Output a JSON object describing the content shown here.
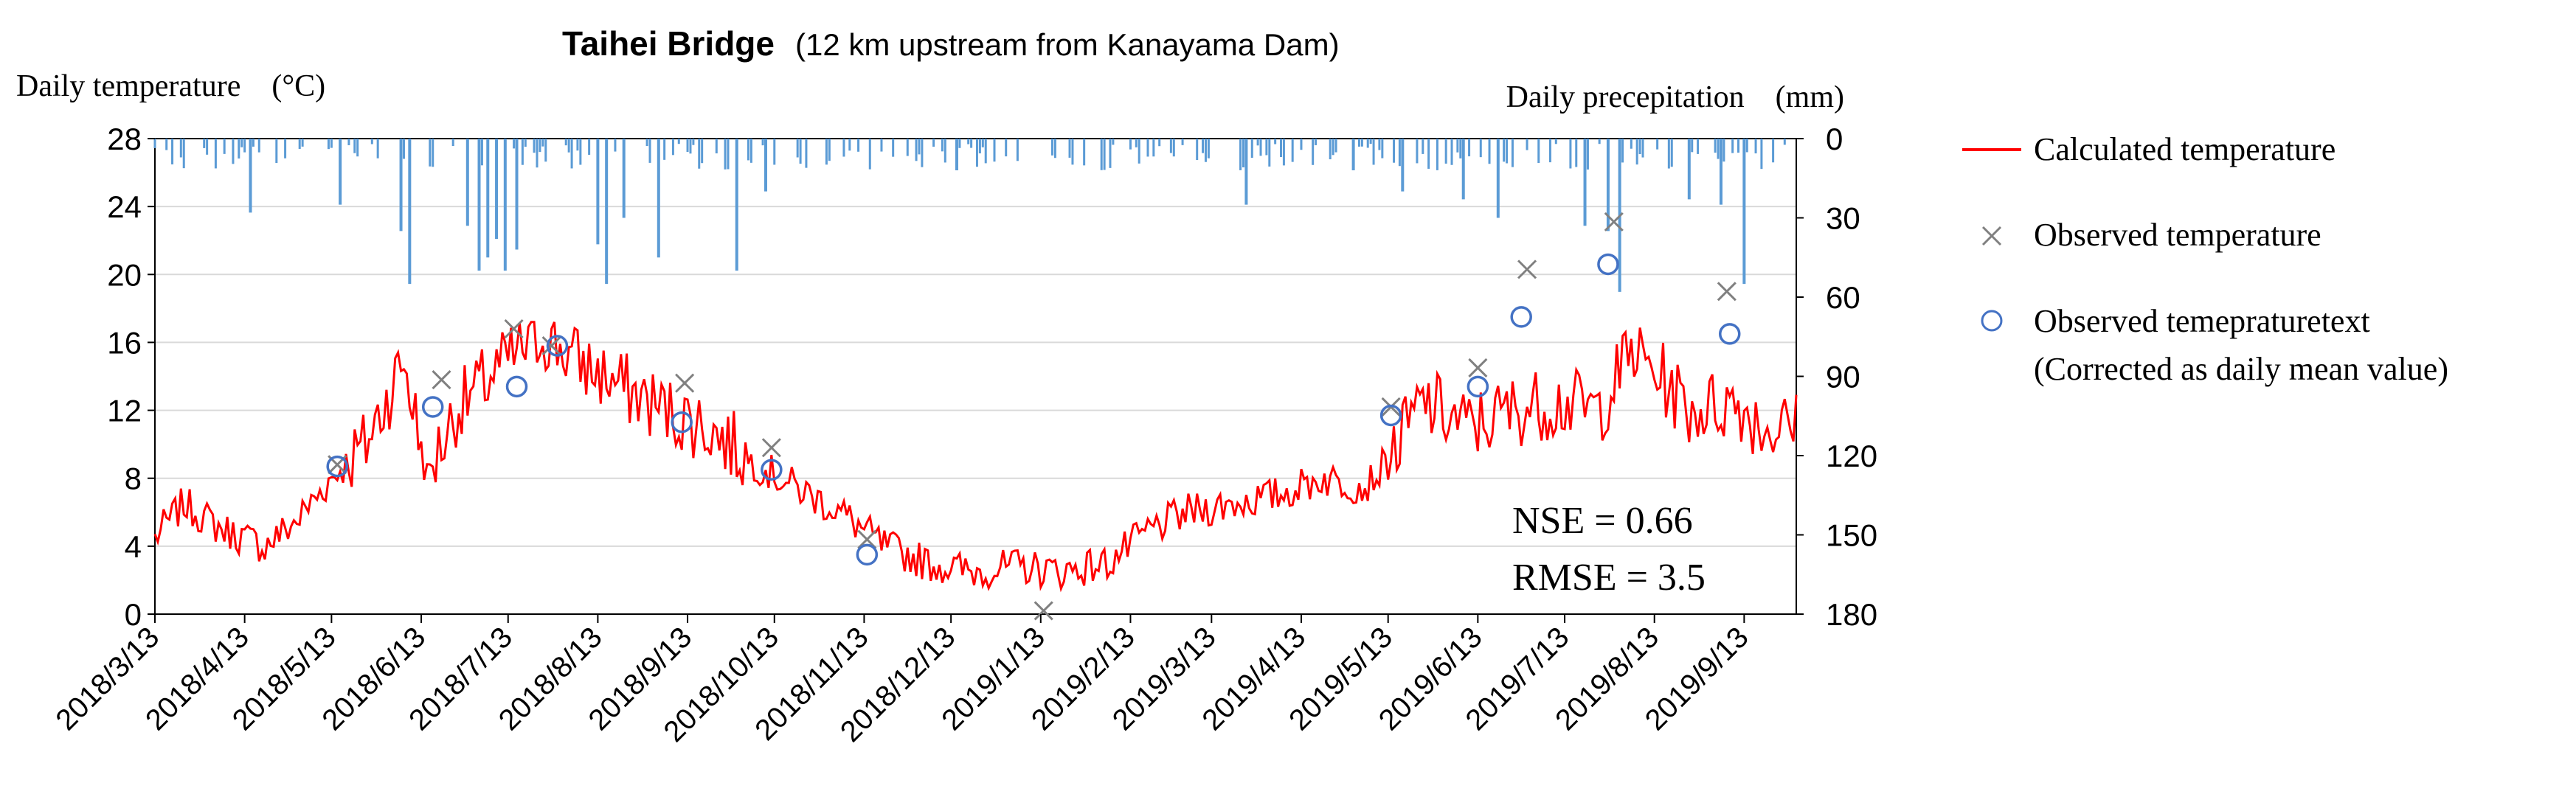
{
  "chart_data": {
    "type": "line",
    "title": "Taihei Bridge",
    "subtitle": "(12 km upstream from Kanayama Dam)",
    "ylabel": "Daily temperature　(°C)",
    "y2label": "Daily precepitation　(mm)",
    "ylim": [
      0,
      28
    ],
    "y2lim": [
      0,
      180
    ],
    "y2_inverted": true,
    "yticks": [
      "0",
      "4",
      "8",
      "12",
      "16",
      "20",
      "24",
      "28"
    ],
    "y2ticks": [
      "0",
      "30",
      "60",
      "90",
      "120",
      "150",
      "180"
    ],
    "xlim": [
      "2018-03-13",
      "2019-10-01"
    ],
    "xticks": [
      "2018/3/13",
      "2018/4/13",
      "2018/5/13",
      "2018/6/13",
      "2018/7/13",
      "2018/8/13",
      "2018/9/13",
      "2018/10/13",
      "2018/11/13",
      "2018/12/13",
      "2019/1/13",
      "2019/2/13",
      "2019/3/13",
      "2019/4/13",
      "2019/5/13",
      "2019/6/13",
      "2019/7/13",
      "2019/8/13",
      "2019/9/13"
    ],
    "grid": "horizontal",
    "legend_position": "right",
    "series": [
      {
        "name": "Calculated temperature",
        "style": "line",
        "color": "#FF0000",
        "key_points": [
          [
            "2018-03-13",
            4.5
          ],
          [
            "2018-03-23",
            6.5
          ],
          [
            "2018-04-05",
            5.0
          ],
          [
            "2018-04-20",
            4.0
          ],
          [
            "2018-05-01",
            5.5
          ],
          [
            "2018-05-13",
            8.0
          ],
          [
            "2018-05-25",
            10.0
          ],
          [
            "2018-06-07",
            15.0
          ],
          [
            "2018-06-15",
            8.0
          ],
          [
            "2018-06-25",
            12.0
          ],
          [
            "2018-07-10",
            14.5
          ],
          [
            "2018-07-25",
            16.5
          ],
          [
            "2018-08-05",
            15.0
          ],
          [
            "2018-08-20",
            13.5
          ],
          [
            "2018-09-05",
            12.0
          ],
          [
            "2018-09-20",
            11.0
          ],
          [
            "2018-10-05",
            9.0
          ],
          [
            "2018-10-20",
            7.5
          ],
          [
            "2018-11-05",
            6.0
          ],
          [
            "2018-11-20",
            4.0
          ],
          [
            "2018-12-05",
            3.0
          ],
          [
            "2018-12-20",
            2.5
          ],
          [
            "2019-01-05",
            2.8
          ],
          [
            "2019-01-20",
            2.5
          ],
          [
            "2019-02-05",
            3.0
          ],
          [
            "2019-02-20",
            5.0
          ],
          [
            "2019-03-05",
            6.0
          ],
          [
            "2019-03-20",
            6.5
          ],
          [
            "2019-04-05",
            7.0
          ],
          [
            "2019-04-20",
            8.0
          ],
          [
            "2019-05-05",
            7.5
          ],
          [
            "2019-05-13",
            9.0
          ],
          [
            "2019-05-25",
            12.5
          ],
          [
            "2019-06-10",
            11.0
          ],
          [
            "2019-06-25",
            12.0
          ],
          [
            "2019-07-10",
            12.5
          ],
          [
            "2019-07-25",
            12.0
          ],
          [
            "2019-08-05",
            15.5
          ],
          [
            "2019-08-15",
            14.0
          ],
          [
            "2019-08-25",
            12.0
          ],
          [
            "2019-09-10",
            12.5
          ],
          [
            "2019-09-20",
            11.0
          ],
          [
            "2019-10-01",
            11.0
          ]
        ]
      },
      {
        "name": "Observed temperature",
        "style": "marker-x",
        "color": "#808080",
        "points": [
          [
            "2018-05-15",
            8.8
          ],
          [
            "2018-06-20",
            13.8
          ],
          [
            "2018-07-15",
            16.8
          ],
          [
            "2018-07-28",
            15.8
          ],
          [
            "2018-09-12",
            13.6
          ],
          [
            "2018-10-12",
            9.8
          ],
          [
            "2018-11-14",
            4.4
          ],
          [
            "2019-01-14",
            0.2
          ],
          [
            "2019-05-14",
            12.2
          ],
          [
            "2019-06-13",
            14.5
          ],
          [
            "2019-06-30",
            20.3
          ],
          [
            "2019-07-30",
            23.1
          ],
          [
            "2019-09-07",
            19.0
          ]
        ]
      },
      {
        "name": "Observed temepraturetext:(Corrected as daily mean value)",
        "style": "marker-circle",
        "color": "#4472C4",
        "points": [
          [
            "2018-05-15",
            8.7
          ],
          [
            "2018-06-17",
            12.2
          ],
          [
            "2018-07-16",
            13.4
          ],
          [
            "2018-07-30",
            15.8
          ],
          [
            "2018-09-11",
            11.3
          ],
          [
            "2018-10-12",
            8.5
          ],
          [
            "2018-11-14",
            3.5
          ],
          [
            "2019-05-14",
            11.7
          ],
          [
            "2019-06-13",
            13.4
          ],
          [
            "2019-06-28",
            17.5
          ],
          [
            "2019-07-28",
            20.6
          ],
          [
            "2019-09-08",
            16.5
          ]
        ]
      },
      {
        "name": "Daily precepitation",
        "style": "bars-from-top",
        "axis": "y2",
        "color": "#5B9BD5",
        "approx_daily_values_mm": "mostly 0-15 mm; spikes of ~20-60 mm during Jun-Aug 2018 and Jun-Sep 2019",
        "spikes": [
          [
            "2018-04-15",
            28
          ],
          [
            "2018-05-16",
            25
          ],
          [
            "2018-06-06",
            35
          ],
          [
            "2018-06-09",
            55
          ],
          [
            "2018-06-29",
            33
          ],
          [
            "2018-07-03",
            50
          ],
          [
            "2018-07-06",
            45
          ],
          [
            "2018-07-09",
            38
          ],
          [
            "2018-07-12",
            50
          ],
          [
            "2018-07-16",
            42
          ],
          [
            "2018-08-13",
            40
          ],
          [
            "2018-08-16",
            55
          ],
          [
            "2018-08-22",
            30
          ],
          [
            "2018-09-03",
            45
          ],
          [
            "2018-09-30",
            50
          ],
          [
            "2018-10-10",
            20
          ],
          [
            "2018-12-15",
            12
          ],
          [
            "2019-03-25",
            25
          ],
          [
            "2019-05-01",
            12
          ],
          [
            "2019-05-18",
            20
          ],
          [
            "2019-06-08",
            23
          ],
          [
            "2019-06-20",
            30
          ],
          [
            "2019-07-20",
            33
          ],
          [
            "2019-07-28",
            35
          ],
          [
            "2019-08-01",
            58
          ],
          [
            "2019-08-25",
            23
          ],
          [
            "2019-09-05",
            25
          ],
          [
            "2019-09-13",
            55
          ]
        ]
      }
    ],
    "annotations": [
      "NSE = 0.66",
      "RMSE = 3.5"
    ]
  },
  "legend": {
    "items": [
      {
        "label": "Calculated temperature"
      },
      {
        "label": "Observed temperature"
      },
      {
        "label": "Observed temepraturetext"
      },
      {
        "label": "(Corrected as daily mean value)"
      }
    ]
  }
}
